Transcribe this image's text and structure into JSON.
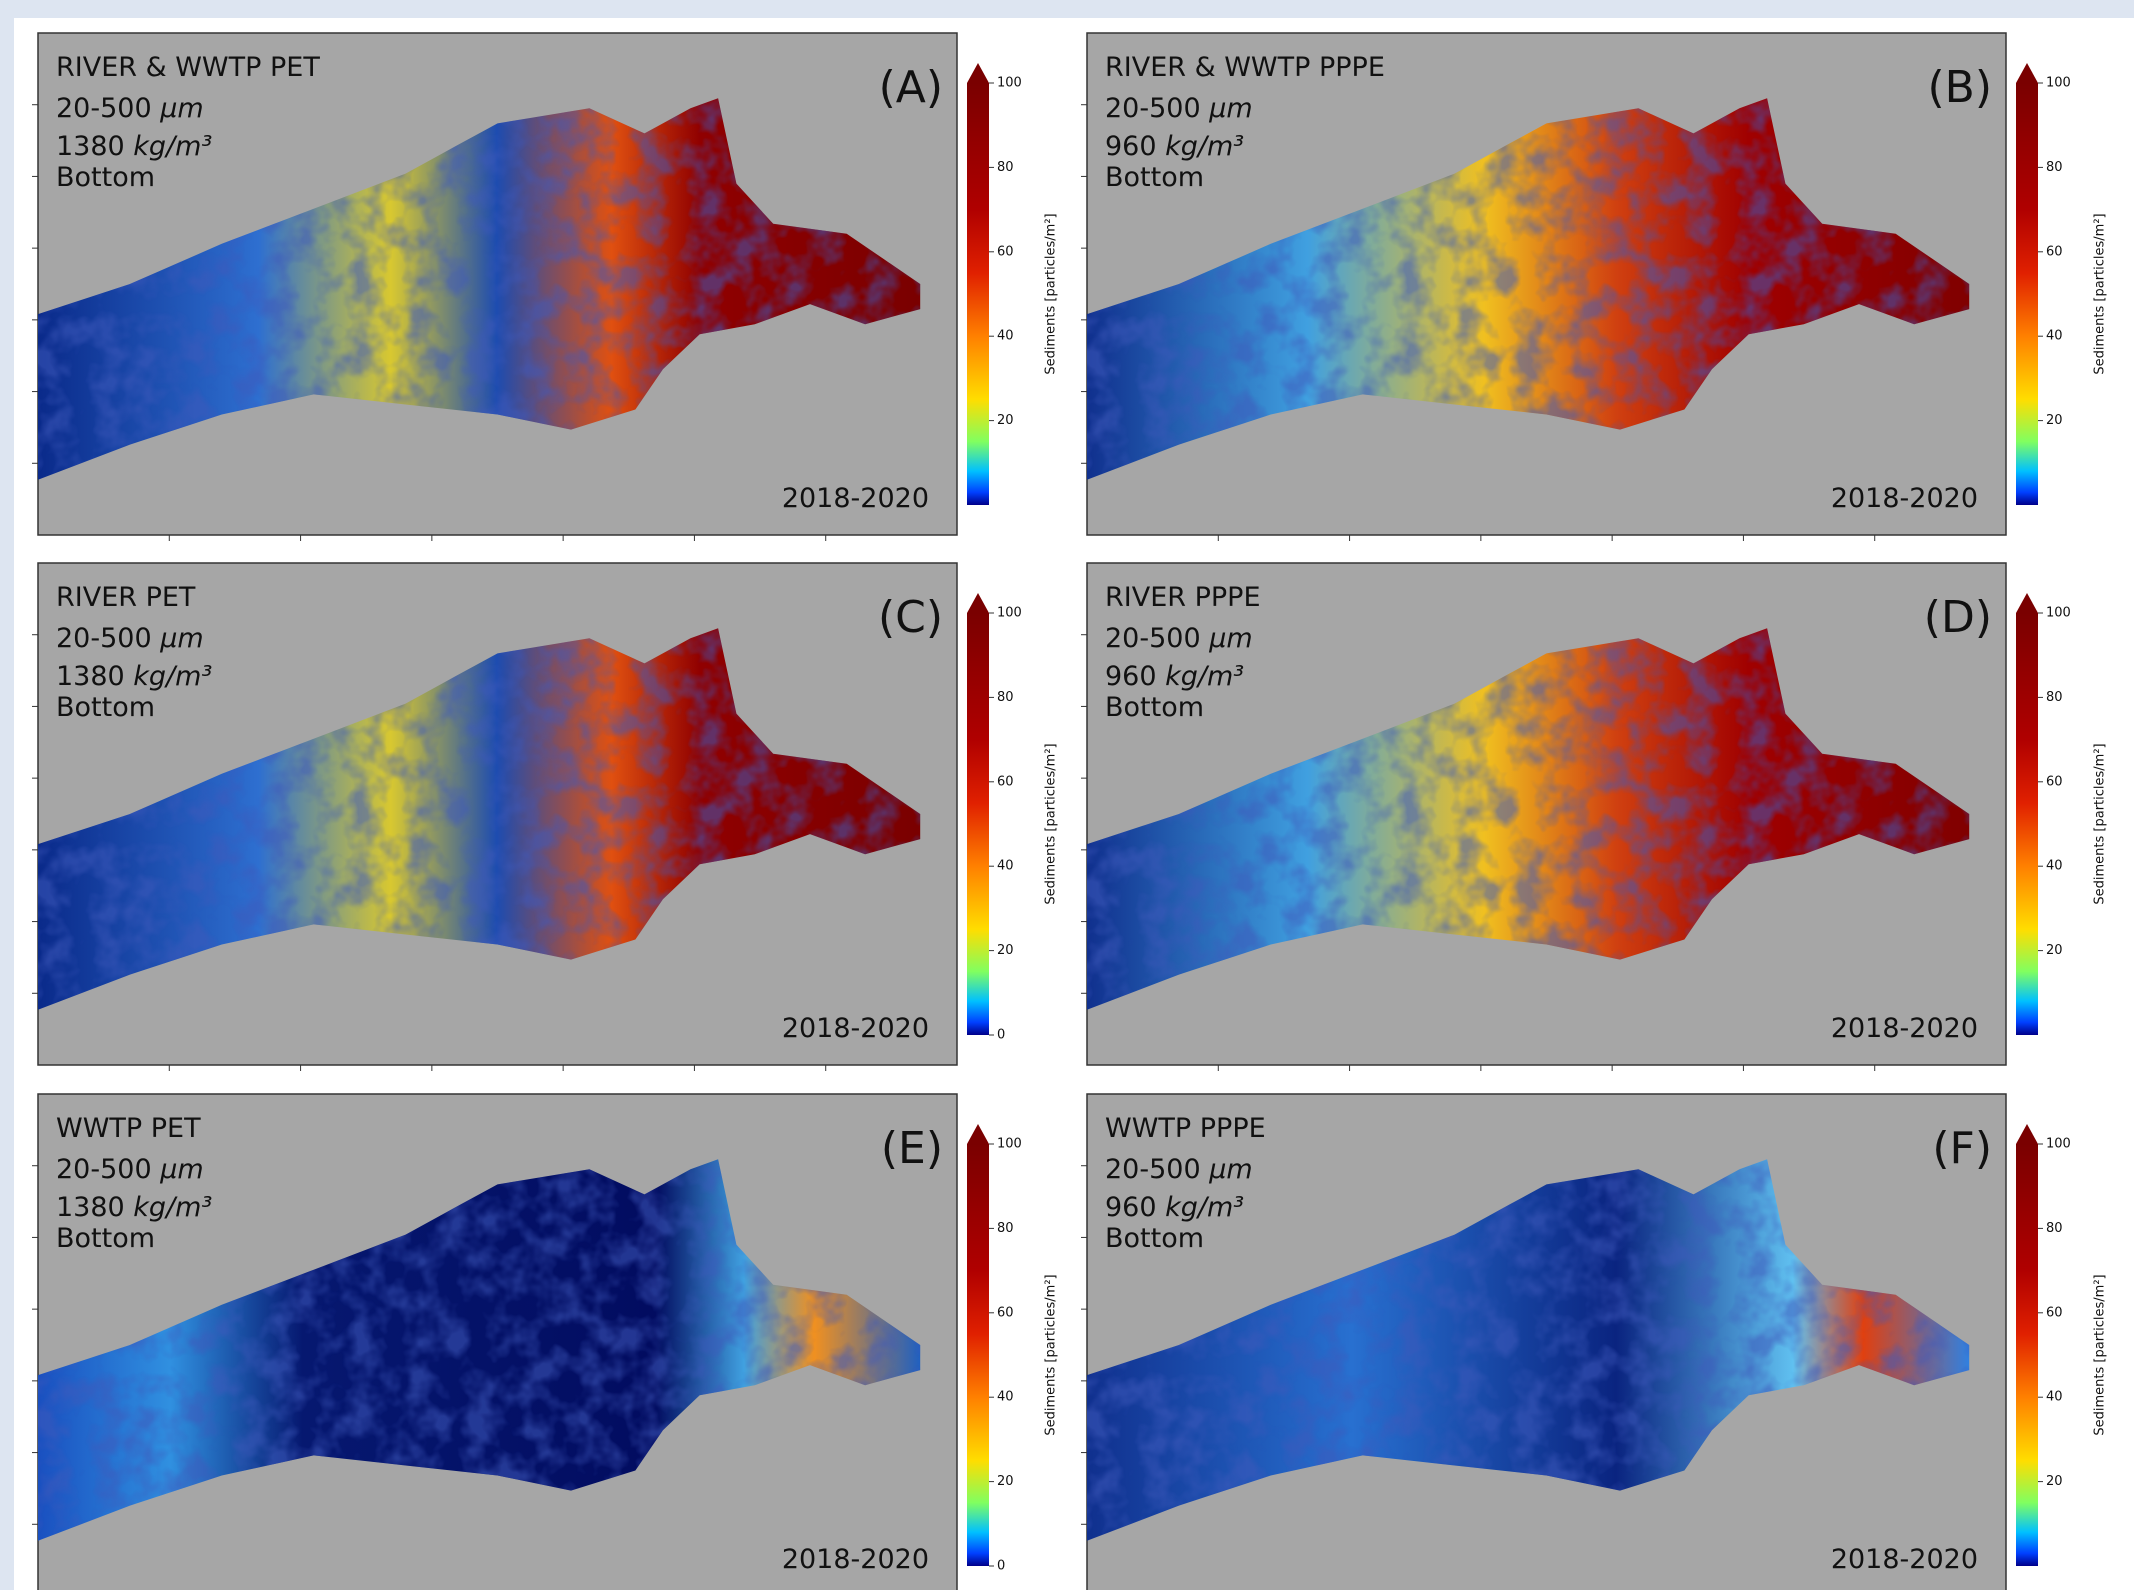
{
  "panels": [
    {
      "label": "(A)",
      "source": "RIVER & WWTP PET",
      "size": "20-500",
      "size_unit": "µm",
      "density": 1380,
      "density_unit": "kg/m³",
      "layer": "Bottom",
      "period": "2018-2020",
      "colorbar": {
        "label": "Sediments [particles/m²]",
        "lim": [
          0,
          100
        ],
        "ticks": [
          20,
          40,
          60,
          80,
          100
        ]
      }
    },
    {
      "label": "(B)",
      "source": "RIVER & WWTP PPPE",
      "size": "20-500",
      "size_unit": "µm",
      "density": 960,
      "density_unit": "kg/m³",
      "layer": "Bottom",
      "period": "2018-2020",
      "colorbar": {
        "label": "Sediments [particles/m²]",
        "lim": [
          0,
          100
        ],
        "ticks": [
          20,
          40,
          60,
          80,
          100
        ]
      }
    },
    {
      "label": "(C)",
      "source": "RIVER PET",
      "size": "20-500",
      "size_unit": "µm",
      "density": 1380,
      "density_unit": "kg/m³",
      "layer": "Bottom",
      "period": "2018-2020",
      "colorbar": {
        "label": "Sediments [particles/m²]",
        "lim": [
          0,
          100
        ],
        "ticks": [
          0,
          20,
          40,
          60,
          80,
          100
        ]
      }
    },
    {
      "label": "(D)",
      "source": "RIVER PPPE",
      "size": "20-500",
      "size_unit": "µm",
      "density": 960,
      "density_unit": "kg/m³",
      "layer": "Bottom",
      "period": "2018-2020",
      "colorbar": {
        "label": "Sediments [particles/m²]",
        "lim": [
          0,
          100
        ],
        "ticks": [
          20,
          40,
          60,
          80,
          100
        ]
      }
    },
    {
      "label": "(E)",
      "source": "WWTP PET",
      "size": "20-500",
      "size_unit": "µm",
      "density": 1380,
      "density_unit": "kg/m³",
      "layer": "Bottom",
      "period": "2018-2020",
      "colorbar": {
        "label": "Sediments [particles/m²]",
        "lim": [
          0,
          100
        ],
        "ticks": [
          0,
          20,
          40,
          60,
          80,
          100
        ]
      }
    },
    {
      "label": "(F)",
      "source": "WWTP PPPE",
      "size": "20-500",
      "size_unit": "µm",
      "density": 960,
      "density_unit": "kg/m³",
      "layer": "Bottom",
      "period": "2018-2020",
      "colorbar": {
        "label": "Sediments [particles/m²]",
        "lim": [
          0,
          100
        ],
        "ticks": [
          20,
          40,
          60,
          80,
          100
        ]
      }
    }
  ]
}
